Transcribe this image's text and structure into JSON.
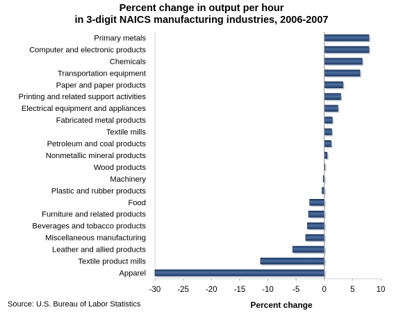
{
  "title_line1": "Percent change in output per hour",
  "title_line2": "in 3-digit NAICS manufacturing industries, 2006-2007",
  "source": "Source:  U.S. Bureau of Labor Statistics",
  "chart_data": {
    "type": "bar",
    "orientation": "horizontal",
    "xlabel": "Percent change",
    "ylabel": "",
    "xlim": [
      -30,
      10
    ],
    "xticks": [
      -30,
      -25,
      -20,
      -15,
      -10,
      -5,
      0,
      5,
      10
    ],
    "grid": false,
    "colors": {
      "bar": "#1f3b66",
      "bar_highlight": "#4d6f9f",
      "axis": "#888888"
    },
    "categories": [
      "Primary metals",
      "Computer and electronic products",
      "Chemicals",
      "Transportation equipment",
      "Paper and paper products",
      "Printing and related support activities",
      "Electrical equipment and appliances",
      "Fabricated metal products",
      "Textile mills",
      "Petroleum and coal products",
      "Nonmetallic mineral products",
      "Wood products",
      "Machinery",
      "Plastic and rubber products",
      "Food",
      "Furniture and related products",
      "Beverages and tobacco products",
      "Miscellaneous manufacturing",
      "Leather and allied products",
      "Textile product mills",
      "Apparel"
    ],
    "values": [
      7.9,
      7.9,
      6.7,
      6.3,
      3.3,
      2.9,
      2.4,
      1.4,
      1.3,
      1.2,
      0.5,
      0.1,
      -0.2,
      -0.4,
      -2.6,
      -2.8,
      -3.0,
      -3.3,
      -5.6,
      -11.3,
      -30.0
    ]
  }
}
